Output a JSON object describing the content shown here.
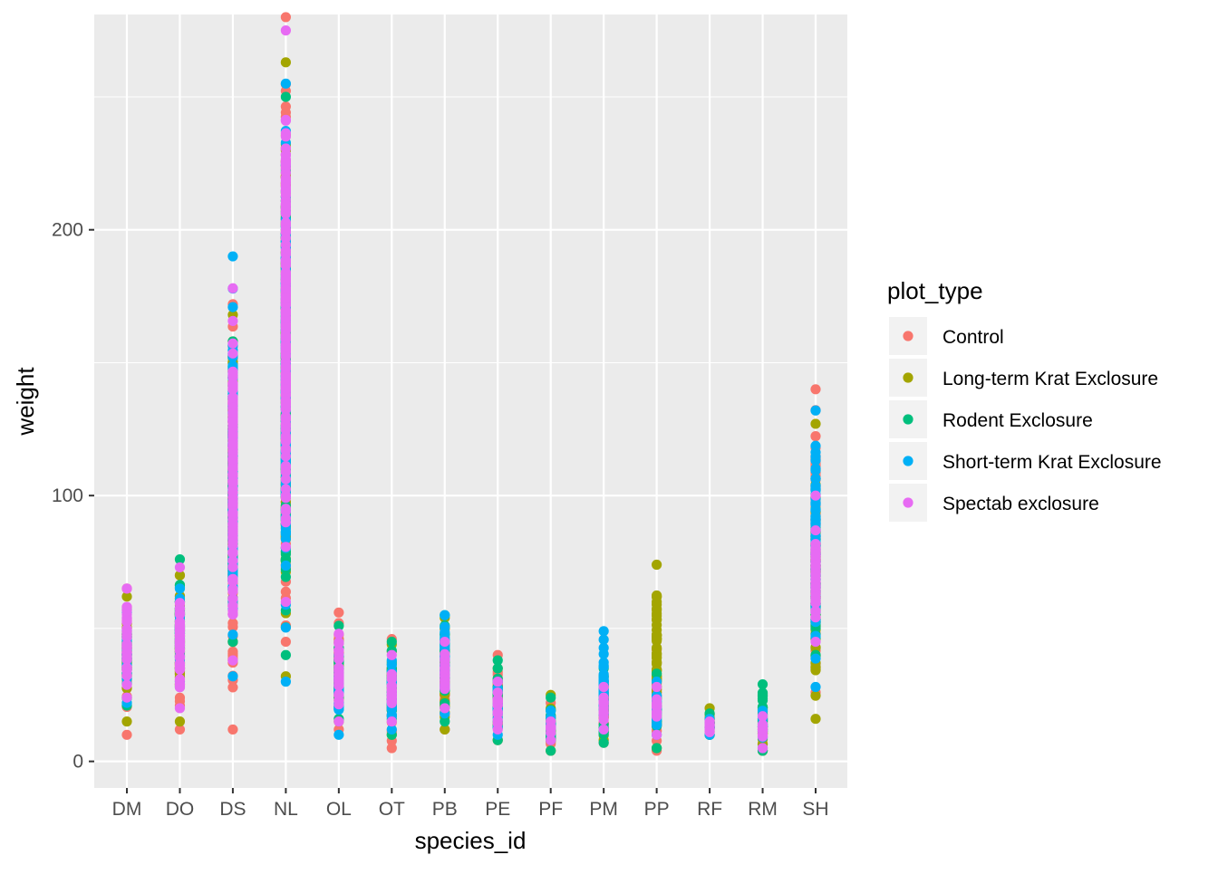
{
  "chart_data": {
    "type": "scatter",
    "title": "",
    "xlabel": "species_id",
    "ylabel": "weight",
    "ylim": [
      -10,
      281
    ],
    "yticks": [
      0,
      100,
      200
    ],
    "grid": true,
    "legend_title": "plot_type",
    "legend_position": "right",
    "categories": [
      "DM",
      "DO",
      "DS",
      "NL",
      "OL",
      "OT",
      "PB",
      "PE",
      "PF",
      "PM",
      "PP",
      "RF",
      "RM",
      "SH"
    ],
    "series": [
      {
        "name": "Control",
        "color": "#F8766D"
      },
      {
        "name": "Long-term Krat Exclosure",
        "color": "#A3A500"
      },
      {
        "name": "Rodent Exclosure",
        "color": "#00BF7D"
      },
      {
        "name": "Short-term Krat Exclosure",
        "color": "#00B0F6"
      },
      {
        "name": "Spectab exclosure",
        "color": "#E76BF3"
      }
    ],
    "ranges": [
      {
        "species": "DM",
        "ranges": [
          [
            10,
            65
          ],
          [
            15,
            62
          ],
          [
            21,
            57
          ],
          [
            22,
            56
          ],
          [
            24,
            65
          ]
        ]
      },
      {
        "species": "DO",
        "ranges": [
          [
            12,
            70
          ],
          [
            15,
            70
          ],
          [
            28,
            76
          ],
          [
            30,
            65
          ],
          [
            20,
            73
          ]
        ]
      },
      {
        "species": "DS",
        "ranges": [
          [
            12,
            172
          ],
          [
            45,
            168
          ],
          [
            45,
            158
          ],
          [
            32,
            190
          ],
          [
            38,
            178
          ]
        ]
      },
      {
        "species": "NL",
        "ranges": [
          [
            45,
            280
          ],
          [
            32,
            263
          ],
          [
            40,
            250
          ],
          [
            30,
            255
          ],
          [
            60,
            275
          ]
        ]
      },
      {
        "species": "OL",
        "ranges": [
          [
            12,
            56
          ],
          [
            15,
            45
          ],
          [
            16,
            51
          ],
          [
            10,
            40
          ],
          [
            15,
            48
          ]
        ]
      },
      {
        "species": "OT",
        "ranges": [
          [
            5,
            46
          ],
          [
            10,
            44
          ],
          [
            10,
            45
          ],
          [
            12,
            38
          ],
          [
            15,
            40
          ]
        ]
      },
      {
        "species": "PB",
        "ranges": [
          [
            12,
            50
          ],
          [
            12,
            54
          ],
          [
            15,
            55
          ],
          [
            18,
            55
          ],
          [
            20,
            45
          ]
        ]
      },
      {
        "species": "PE",
        "ranges": [
          [
            8,
            40
          ],
          [
            8,
            35
          ],
          [
            8,
            38
          ],
          [
            10,
            30
          ],
          [
            12,
            30
          ]
        ]
      },
      {
        "species": "PF",
        "ranges": [
          [
            4,
            22
          ],
          [
            4,
            25
          ],
          [
            4,
            24
          ],
          [
            8,
            19
          ],
          [
            8,
            15
          ]
        ]
      },
      {
        "species": "PM",
        "ranges": [
          [
            7,
            30
          ],
          [
            8,
            32
          ],
          [
            7,
            35
          ],
          [
            12,
            49
          ],
          [
            12,
            28
          ]
        ]
      },
      {
        "species": "PP",
        "ranges": [
          [
            4,
            42
          ],
          [
            5,
            74
          ],
          [
            5,
            33
          ],
          [
            10,
            30
          ],
          [
            10,
            28
          ]
        ]
      },
      {
        "species": "RF",
        "ranges": [
          [
            10,
            18
          ],
          [
            10,
            20
          ],
          [
            10,
            18
          ],
          [
            10,
            16
          ],
          [
            11,
            15
          ]
        ]
      },
      {
        "species": "RM",
        "ranges": [
          [
            4,
            18
          ],
          [
            4,
            20
          ],
          [
            4,
            29
          ],
          [
            5,
            19
          ],
          [
            5,
            17
          ]
        ]
      },
      {
        "species": "SH",
        "ranges": [
          [
            26,
            140
          ],
          [
            16,
            127
          ],
          [
            40,
            95
          ],
          [
            28,
            132
          ],
          [
            45,
            100
          ]
        ]
      }
    ]
  }
}
